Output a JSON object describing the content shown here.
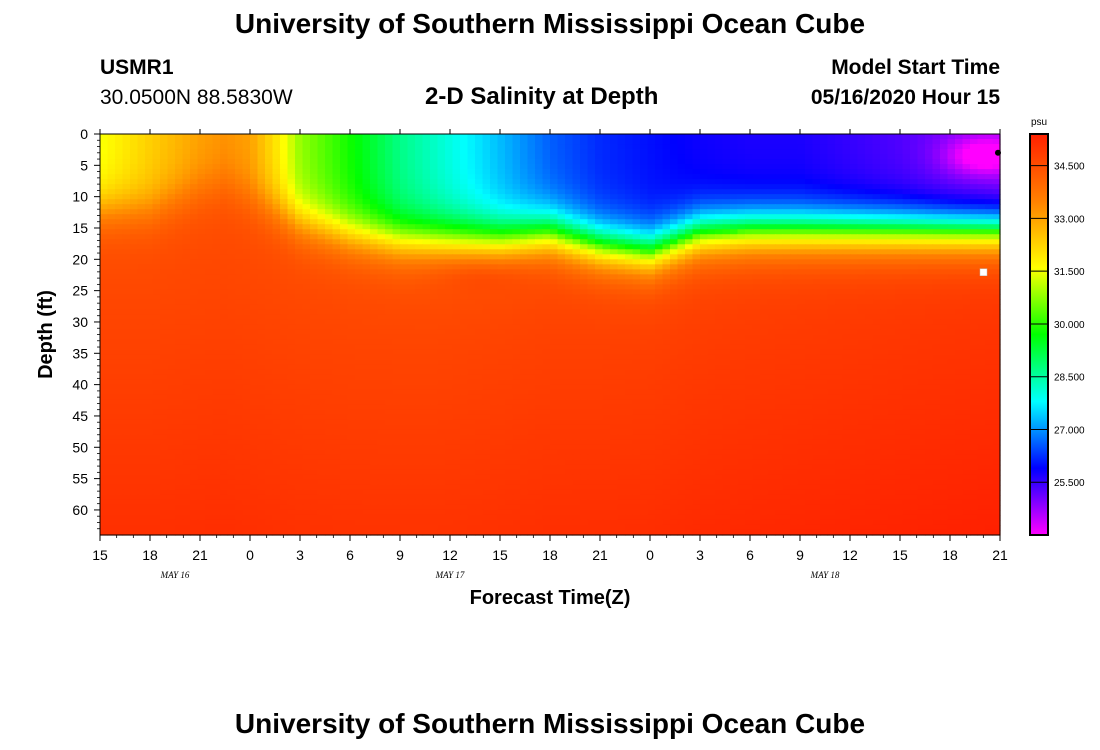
{
  "page": {
    "title": "University of Southern Mississippi Ocean Cube",
    "footer_title": "University of Southern Mississippi Ocean Cube",
    "station_id": "USMR1",
    "coordinates": "30.0500N 88.5830W",
    "subtitle": "2-D Salinity at Depth",
    "model_start_label": "Model Start Time",
    "model_start_value": "05/16/2020 Hour 15"
  },
  "chart_data": {
    "type": "heatmap",
    "title": "2-D Salinity at Depth",
    "xlabel": "Forecast Time(Z)",
    "ylabel": "Depth (ft)",
    "x_ticks": [
      "15",
      "18",
      "21",
      "0",
      "3",
      "6",
      "9",
      "12",
      "15",
      "18",
      "21",
      "0",
      "3",
      "6",
      "9",
      "12",
      "15",
      "18",
      "21"
    ],
    "x_range_hours": [
      0,
      54
    ],
    "date_labels": [
      {
        "label": "MAY 16",
        "hour": 4.5
      },
      {
        "label": "MAY 17",
        "hour": 21
      },
      {
        "label": "MAY 18",
        "hour": 43.5
      }
    ],
    "y_ticks": [
      "0",
      "5",
      "10",
      "15",
      "20",
      "25",
      "30",
      "35",
      "40",
      "45",
      "50",
      "55",
      "60"
    ],
    "y_range_ft": [
      0,
      64
    ],
    "colorbar": {
      "unit": "psu",
      "range": [
        24,
        35.4
      ],
      "labels": [
        "34.500",
        "33.000",
        "31.500",
        "30.000",
        "28.500",
        "27.000",
        "25.500"
      ],
      "label_values": [
        34.5,
        33.0,
        31.5,
        30.0,
        28.5,
        27.0,
        25.5
      ],
      "colors": [
        "#ff00ff",
        "#0000ff",
        "#00ffff",
        "#00ff00",
        "#ffff00",
        "#ff8000",
        "#ff2000"
      ]
    },
    "salinity_profile": {
      "hours": [
        0,
        3,
        6,
        7.5,
        9,
        10.5,
        12,
        15,
        18,
        21,
        24,
        27,
        30,
        33,
        36,
        39,
        42,
        45,
        48,
        51,
        54
      ],
      "halocline_depth_ft": [
        12,
        12,
        9,
        8,
        10,
        12,
        14,
        16,
        17,
        17,
        17,
        16,
        18,
        19,
        16,
        15.5,
        15.5,
        15.5,
        15.5,
        15.5,
        15.5
      ],
      "surface_salinity_psu": [
        31.5,
        32.3,
        33.0,
        33.2,
        33.0,
        32.0,
        30.8,
        29.8,
        28.7,
        28.0,
        27.3,
        26.6,
        26.2,
        26.0,
        25.8,
        25.7,
        25.7,
        25.5,
        25.3,
        25.0,
        24.8
      ],
      "deep_salinity_psu": 34.5
    }
  }
}
